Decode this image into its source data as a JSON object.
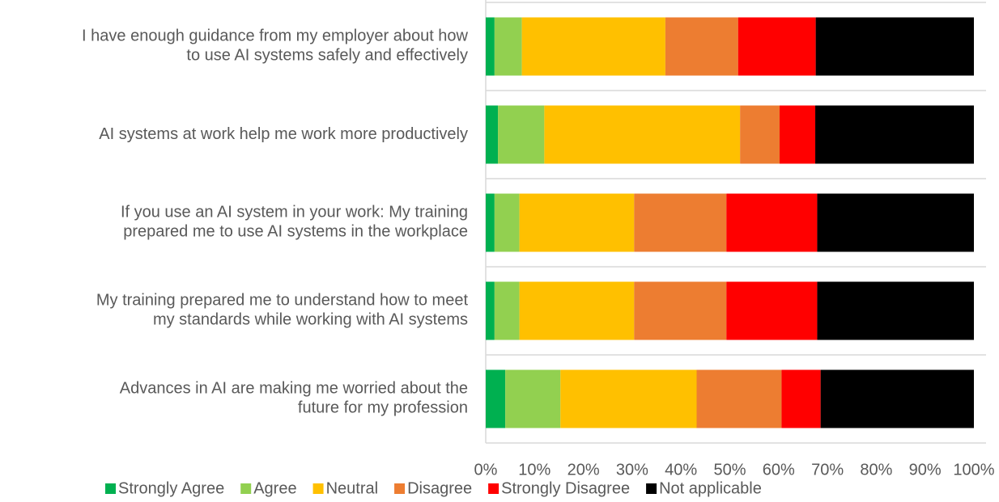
{
  "chart_data": {
    "type": "stacked_barh",
    "categories": [
      "I have enough guidance from my employer about how\nto use AI systems safely and effectively",
      "AI systems at work help me work more productively",
      "If you use an AI system in your work: My training\nprepared me to use AI systems in the workplace",
      "My training prepared me to understand how to meet\nmy standards while working with AI systems",
      "Advances in AI are making me worried about the\nfuture for my profession"
    ],
    "series": [
      {
        "name": "Strongly Agree",
        "color": "#00b050",
        "values": [
          1.8,
          2.5,
          1.8,
          1.8,
          4.0
        ]
      },
      {
        "name": "Agree",
        "color": "#92d050",
        "values": [
          5.6,
          9.5,
          5.1,
          5.1,
          11.3
        ]
      },
      {
        "name": "Neutral",
        "color": "#ffc000",
        "values": [
          29.4,
          40.1,
          23.5,
          23.5,
          27.9
        ]
      },
      {
        "name": "Disagree",
        "color": "#ed7d31",
        "values": [
          14.9,
          8.1,
          18.9,
          18.9,
          17.4
        ]
      },
      {
        "name": "Strongly Disagree",
        "color": "#ff0000",
        "values": [
          15.9,
          7.3,
          18.6,
          18.6,
          8.0
        ]
      },
      {
        "name": "Not applicable",
        "color": "#000000",
        "values": [
          32.4,
          32.5,
          32.1,
          32.1,
          31.4
        ]
      }
    ],
    "xlim": [
      0,
      100
    ],
    "xticks": [
      {
        "value": 0,
        "label": "0%"
      },
      {
        "value": 10,
        "label": "10%"
      },
      {
        "value": 20,
        "label": "20%"
      },
      {
        "value": 30,
        "label": "30%"
      },
      {
        "value": 40,
        "label": "40%"
      },
      {
        "value": 50,
        "label": "50%"
      },
      {
        "value": 60,
        "label": "60%"
      },
      {
        "value": 70,
        "label": "70%"
      },
      {
        "value": 80,
        "label": "80%"
      },
      {
        "value": 90,
        "label": "90%"
      },
      {
        "value": 100,
        "label": "100%"
      }
    ],
    "legend": "bottom"
  }
}
